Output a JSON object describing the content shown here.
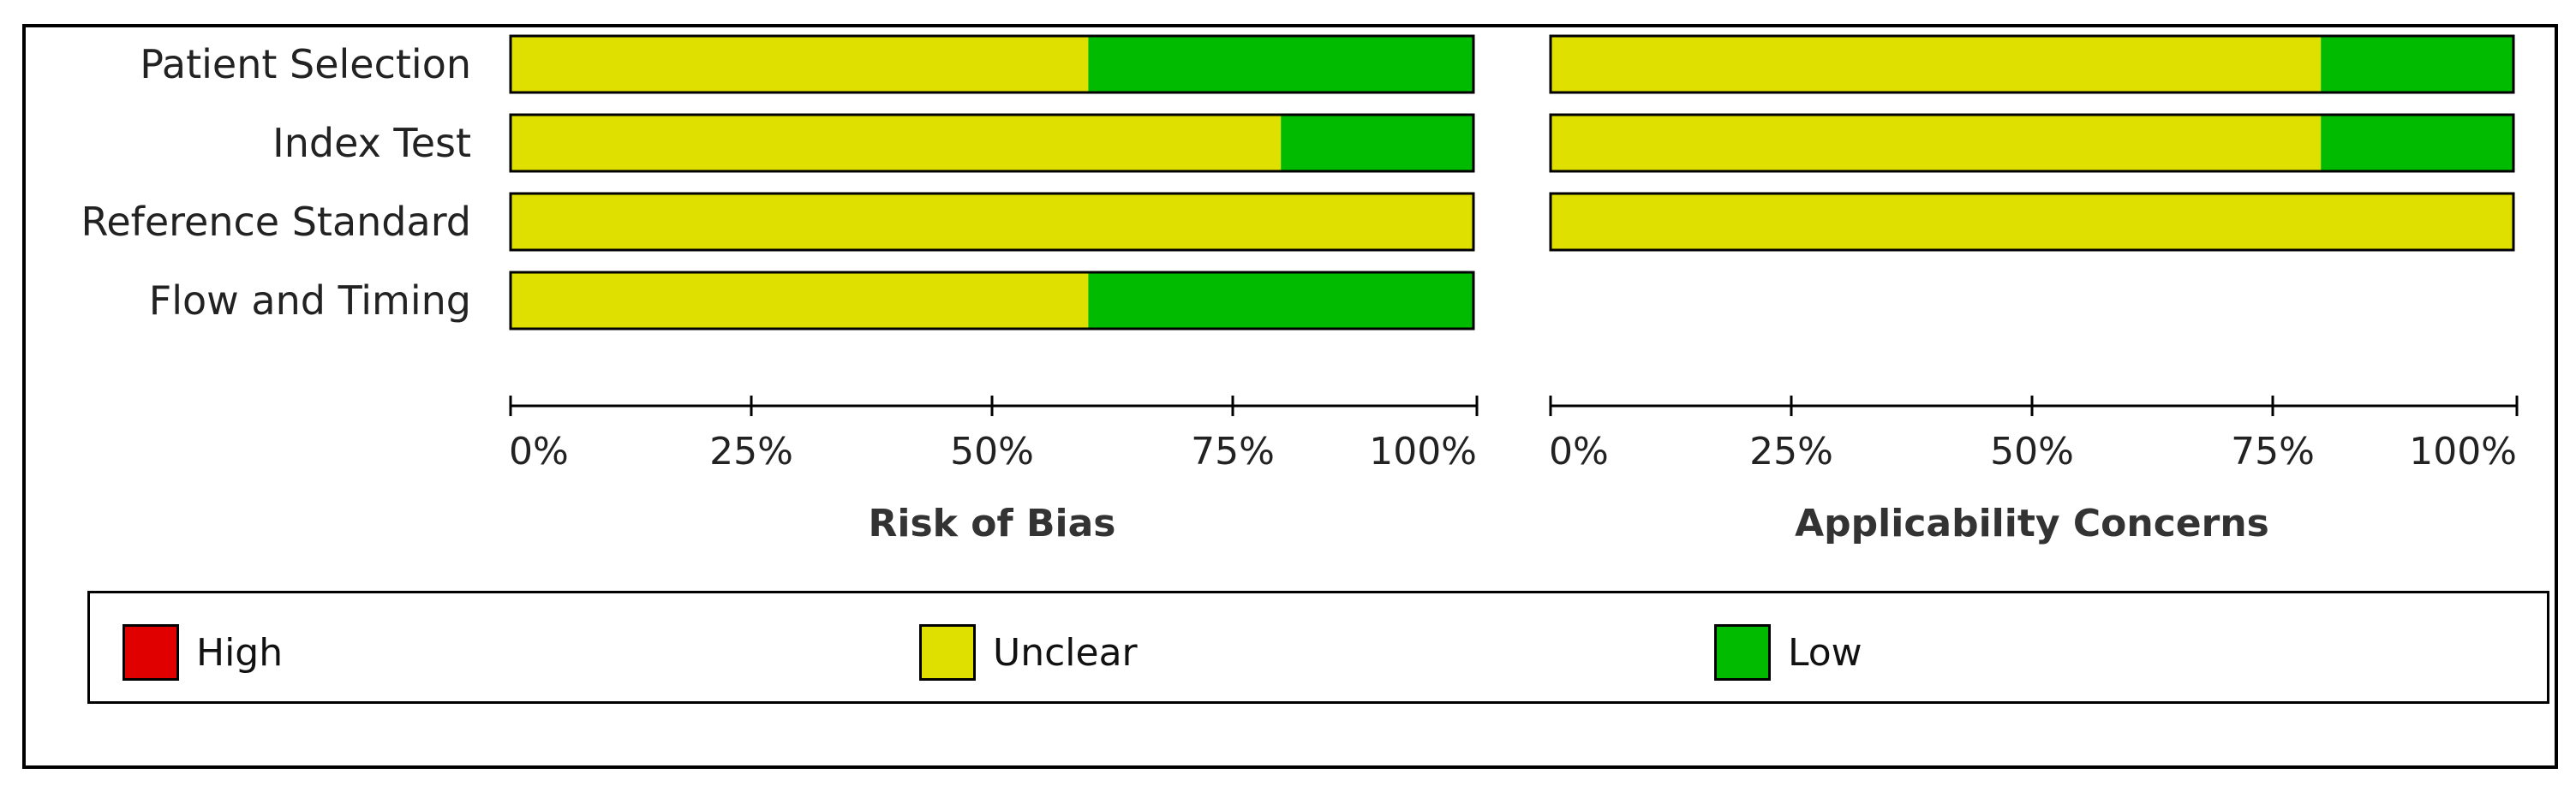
{
  "chart_data": {
    "type": "bar",
    "stacked": true,
    "orientation": "horizontal",
    "unit": "%",
    "categories": [
      "Patient Selection",
      "Index Test",
      "Reference Standard",
      "Flow and Timing"
    ],
    "ticks": [
      "0%",
      "25%",
      "50%",
      "75%",
      "100%"
    ],
    "xlim": [
      0,
      100
    ],
    "colors": {
      "High": "#e00000",
      "Unclear": "#e0e000",
      "Low": "#00bb00"
    },
    "panels": [
      {
        "title": "Risk of Bias",
        "series": [
          {
            "name": "High",
            "values": [
              0,
              0,
              0,
              0
            ]
          },
          {
            "name": "Unclear",
            "values": [
              60,
              80,
              100,
              60
            ]
          },
          {
            "name": "Low",
            "values": [
              40,
              20,
              0,
              40
            ]
          }
        ]
      },
      {
        "title": "Applicability Concerns",
        "series": [
          {
            "name": "High",
            "values": [
              0,
              0,
              0,
              null
            ]
          },
          {
            "name": "Unclear",
            "values": [
              80,
              80,
              100,
              null
            ]
          },
          {
            "name": "Low",
            "values": [
              20,
              20,
              0,
              null
            ]
          }
        ]
      }
    ],
    "legend": {
      "placement": "bottom",
      "items": [
        "High",
        "Unclear",
        "Low"
      ]
    }
  }
}
